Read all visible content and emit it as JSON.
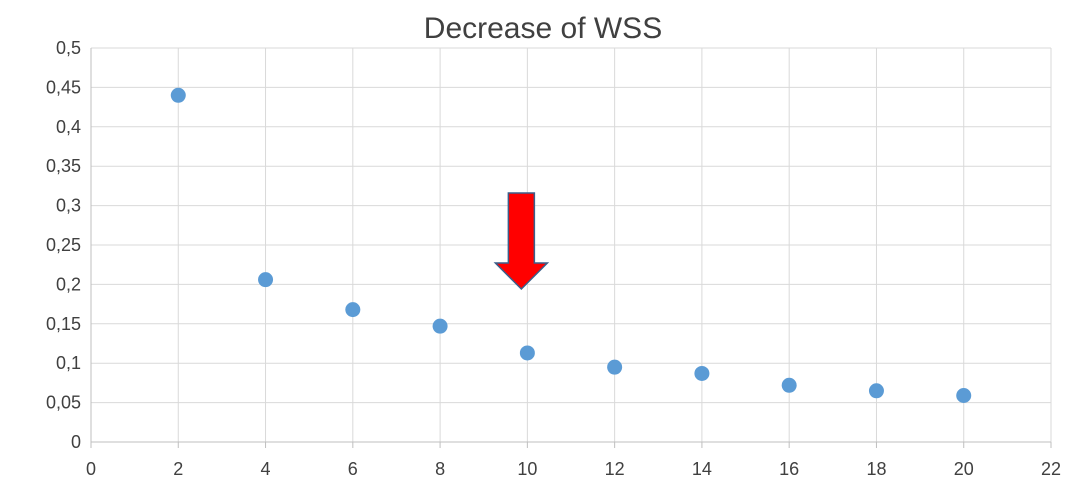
{
  "chart_data": {
    "type": "scatter",
    "title": "Decrease of WSS",
    "xlabel": "",
    "ylabel": "",
    "xlim": [
      0,
      22
    ],
    "ylim": [
      0,
      0.5
    ],
    "x_ticks": [
      "0",
      "2",
      "4",
      "6",
      "8",
      "10",
      "12",
      "14",
      "16",
      "18",
      "20",
      "22"
    ],
    "y_ticks": [
      "0",
      "0,05",
      "0,1",
      "0,15",
      "0,2",
      "0,25",
      "0,3",
      "0,35",
      "0,4",
      "0,45",
      "0,5"
    ],
    "grid": true,
    "legend": "none",
    "marker_color": "#5b9bd5",
    "series": [
      {
        "x": [
          2,
          4,
          6,
          8,
          10,
          12,
          14,
          16,
          18,
          20
        ],
        "y": [
          0.44,
          0.206,
          0.168,
          0.147,
          0.113,
          0.095,
          0.087,
          0.072,
          0.065,
          0.059
        ]
      }
    ],
    "annotation": {
      "type": "down-arrow",
      "color": "#ff0000",
      "points_to_x": 10
    }
  }
}
